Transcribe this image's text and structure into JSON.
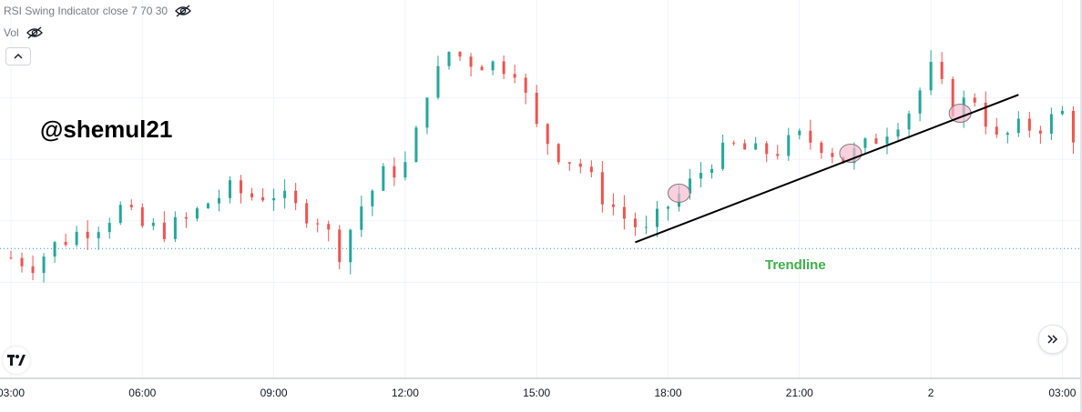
{
  "legend": {
    "indicator": "RSI Swing Indicator close 7 70 30",
    "volume": "Vol"
  },
  "watermark": "@shemul21",
  "annotation": "Trendline",
  "colors": {
    "up": "#26a69a",
    "down": "#ef5350",
    "grid": "#f0f3fa",
    "axis_text": "#131722",
    "trendline": "#000000",
    "annotation": "#3fae49",
    "highlight": "#f8bbd0",
    "reference_line": "#2196f3"
  },
  "icons": {
    "legend_eye": "eye-crossed-icon",
    "collapse": "chevron-up-icon",
    "logo": "tradingview-logo-icon",
    "scroll": "double-chevron-right-icon"
  },
  "chart_data": {
    "type": "candlestick",
    "title": "",
    "xlabel": "",
    "ylabel": "",
    "grid": true,
    "x_ticks": [
      "03:00",
      "06:00",
      "09:00",
      "12:00",
      "15:00",
      "18:00",
      "21:00",
      "2",
      "03:00"
    ],
    "ylim": [
      0,
      100
    ],
    "reference_level": 31,
    "trendline": {
      "from": {
        "time": "17:15",
        "level": 33
      },
      "to": {
        "time": "2 02:00",
        "level": 81
      }
    },
    "highlights": [
      {
        "time": "18:15",
        "level": 49
      },
      {
        "time": "22:10",
        "level": 62
      },
      {
        "time": "2 00:40",
        "level": 75
      }
    ],
    "close_series": [
      {
        "t": "03:00",
        "c": 28
      },
      {
        "t": "03:30",
        "c": 26
      },
      {
        "t": "04:00",
        "c": 32
      },
      {
        "t": "04:30",
        "c": 36
      },
      {
        "t": "05:00",
        "c": 39
      },
      {
        "t": "05:30",
        "c": 44
      },
      {
        "t": "06:00",
        "c": 38
      },
      {
        "t": "06:30",
        "c": 37
      },
      {
        "t": "07:00",
        "c": 40
      },
      {
        "t": "07:30",
        "c": 46
      },
      {
        "t": "08:00",
        "c": 50
      },
      {
        "t": "08:30",
        "c": 48
      },
      {
        "t": "09:00",
        "c": 49
      },
      {
        "t": "09:30",
        "c": 44
      },
      {
        "t": "10:00",
        "c": 41
      },
      {
        "t": "10:30",
        "c": 30
      },
      {
        "t": "11:00",
        "c": 45
      },
      {
        "t": "11:30",
        "c": 55
      },
      {
        "t": "12:00",
        "c": 58
      },
      {
        "t": "12:15",
        "c": 68
      },
      {
        "t": "12:30",
        "c": 83
      },
      {
        "t": "12:45",
        "c": 88
      },
      {
        "t": "13:00",
        "c": 95
      },
      {
        "t": "13:30",
        "c": 92
      },
      {
        "t": "14:00",
        "c": 91
      },
      {
        "t": "14:30",
        "c": 90
      },
      {
        "t": "15:00",
        "c": 70
      },
      {
        "t": "15:30",
        "c": 62
      },
      {
        "t": "16:00",
        "c": 58
      },
      {
        "t": "16:30",
        "c": 48
      },
      {
        "t": "17:00",
        "c": 41
      },
      {
        "t": "17:30",
        "c": 36
      },
      {
        "t": "18:00",
        "c": 45
      },
      {
        "t": "18:30",
        "c": 52
      },
      {
        "t": "19:00",
        "c": 60
      },
      {
        "t": "19:30",
        "c": 64
      },
      {
        "t": "20:00",
        "c": 62
      },
      {
        "t": "20:30",
        "c": 63
      },
      {
        "t": "21:00",
        "c": 67
      },
      {
        "t": "21:30",
        "c": 65
      },
      {
        "t": "22:00",
        "c": 60
      },
      {
        "t": "22:30",
        "c": 64
      },
      {
        "t": "23:00",
        "c": 70
      },
      {
        "t": "23:30",
        "c": 76
      },
      {
        "t": "2 00:00",
        "c": 89
      },
      {
        "t": "2 00:30",
        "c": 77
      },
      {
        "t": "2 01:00",
        "c": 80
      },
      {
        "t": "2 01:30",
        "c": 66
      },
      {
        "t": "2 02:00",
        "c": 70
      },
      {
        "t": "2 02:30",
        "c": 71
      },
      {
        "t": "2 03:00",
        "c": 75
      },
      {
        "t": "2 03:15",
        "c": 68
      }
    ]
  }
}
